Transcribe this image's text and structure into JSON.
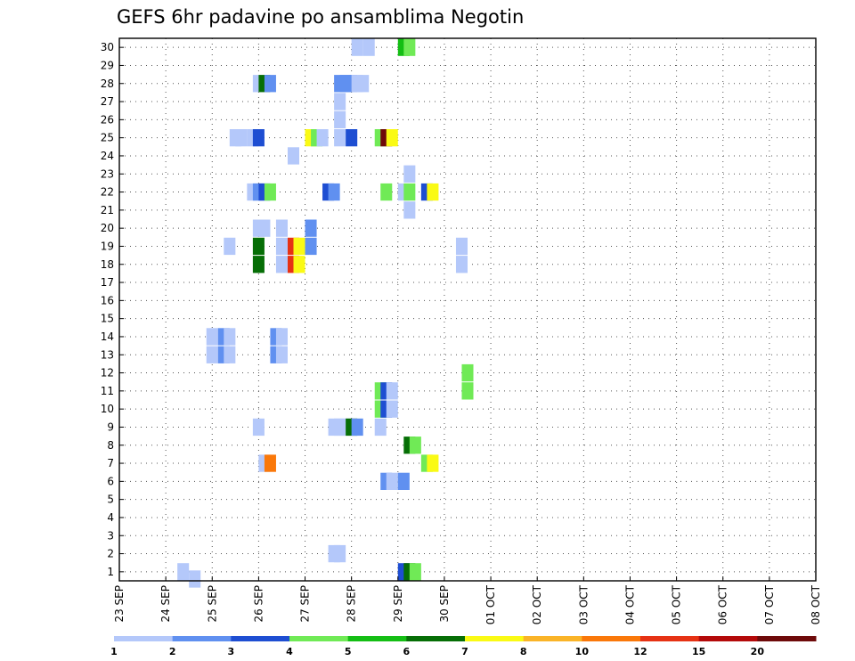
{
  "chart_data": {
    "type": "heatmap",
    "title": "GEFS 6hr padavine po ansamblima Negotin",
    "y_members": [
      "1",
      "2",
      "3",
      "4",
      "5",
      "6",
      "7",
      "8",
      "9",
      "10",
      "11",
      "12",
      "13",
      "14",
      "15",
      "16",
      "17",
      "18",
      "19",
      "20",
      "21",
      "22",
      "23",
      "24",
      "25",
      "26",
      "27",
      "28",
      "29",
      "30"
    ],
    "x_dates": [
      "23 SEP",
      "24 SEP",
      "25 SEP",
      "26 SEP",
      "27 SEP",
      "28 SEP",
      "29 SEP",
      "30 SEP",
      "01 OCT",
      "02 OCT",
      "03 OCT",
      "04 OCT",
      "05 OCT",
      "06 OCT",
      "07 OCT",
      "08 OCT"
    ],
    "x_step_hours": 6,
    "legend": {
      "colors": [
        "#b4c8fa",
        "#6090f0",
        "#1e4ed2",
        "#70ea56",
        "#14be14",
        "#066e06",
        "#fafa14",
        "#fab428",
        "#fa780a",
        "#e63214",
        "#b40a0a",
        "#6e0a0a"
      ],
      "labels": [
        "1",
        "2",
        "3",
        "4",
        "5",
        "6",
        "7",
        "8",
        "10",
        "12",
        "15",
        "20"
      ]
    },
    "cells": [
      {
        "m": 30,
        "t": 20.5,
        "c": 0
      },
      {
        "m": 30,
        "t": 21.5,
        "c": 0
      },
      {
        "m": 30,
        "t": 24.5,
        "c": 4
      },
      {
        "m": 30,
        "t": 25,
        "c": 3
      },
      {
        "m": 28,
        "t": 12,
        "c": 0
      },
      {
        "m": 28,
        "t": 12.5,
        "c": 5
      },
      {
        "m": 28,
        "t": 13,
        "c": 1
      },
      {
        "m": 28,
        "t": 19,
        "c": 1
      },
      {
        "m": 28,
        "t": 19.5,
        "c": 1
      },
      {
        "m": 28,
        "t": 20,
        "c": 1
      },
      {
        "m": 28,
        "t": 20.5,
        "c": 0
      },
      {
        "m": 28,
        "t": 21,
        "c": 0
      },
      {
        "m": 27,
        "t": 19,
        "c": 0
      },
      {
        "m": 26,
        "t": 19,
        "c": 0
      },
      {
        "m": 25,
        "t": 10,
        "c": 0
      },
      {
        "m": 25,
        "t": 10.5,
        "c": 0
      },
      {
        "m": 25,
        "t": 11.5,
        "c": 0
      },
      {
        "m": 25,
        "t": 12,
        "c": 2
      },
      {
        "m": 25,
        "t": 16.5,
        "c": 6
      },
      {
        "m": 25,
        "t": 17,
        "c": 3
      },
      {
        "m": 25,
        "t": 17.5,
        "c": 0
      },
      {
        "m": 25,
        "t": 19,
        "c": 0
      },
      {
        "m": 25,
        "t": 20,
        "c": 2
      },
      {
        "m": 25,
        "t": 22.5,
        "c": 3
      },
      {
        "m": 25,
        "t": 23,
        "c": 11
      },
      {
        "m": 25,
        "t": 23.5,
        "c": 6
      },
      {
        "m": 24,
        "t": 15,
        "c": 0
      },
      {
        "m": 23,
        "t": 25,
        "c": 0
      },
      {
        "m": 22,
        "t": 11.5,
        "c": 0
      },
      {
        "m": 22,
        "t": 12,
        "c": 1
      },
      {
        "m": 22,
        "t": 12.5,
        "c": 2
      },
      {
        "m": 22,
        "t": 13,
        "c": 3
      },
      {
        "m": 22,
        "t": 18,
        "c": 2
      },
      {
        "m": 22,
        "t": 18.5,
        "c": 1
      },
      {
        "m": 22,
        "t": 23,
        "c": 3
      },
      {
        "m": 22,
        "t": 24.5,
        "c": 0
      },
      {
        "m": 22,
        "t": 25,
        "c": 3
      },
      {
        "m": 22,
        "t": 26.5,
        "c": 2
      },
      {
        "m": 22,
        "t": 27,
        "c": 6
      },
      {
        "m": 21,
        "t": 25,
        "c": 0
      },
      {
        "m": 20,
        "t": 12,
        "c": 0
      },
      {
        "m": 20,
        "t": 12.5,
        "c": 0
      },
      {
        "m": 20,
        "t": 14,
        "c": 0
      },
      {
        "m": 20,
        "t": 16.5,
        "c": 1
      },
      {
        "m": 19,
        "t": 9.5,
        "c": 0
      },
      {
        "m": 19,
        "t": 12,
        "c": 5
      },
      {
        "m": 19,
        "t": 14,
        "c": 0
      },
      {
        "m": 19,
        "t": 15,
        "c": 9
      },
      {
        "m": 19,
        "t": 15.5,
        "c": 6
      },
      {
        "m": 19,
        "t": 16.5,
        "c": 1
      },
      {
        "m": 19,
        "t": 29.5,
        "c": 0
      },
      {
        "m": 18,
        "t": 12,
        "c": 5
      },
      {
        "m": 18,
        "t": 14,
        "c": 0
      },
      {
        "m": 18,
        "t": 15,
        "c": 9
      },
      {
        "m": 18,
        "t": 15.5,
        "c": 6
      },
      {
        "m": 18,
        "t": 29.5,
        "c": 0
      },
      {
        "m": 14,
        "t": 8,
        "c": 0
      },
      {
        "m": 14,
        "t": 9,
        "c": 1
      },
      {
        "m": 14,
        "t": 9.5,
        "c": 0
      },
      {
        "m": 14,
        "t": 13.5,
        "c": 1
      },
      {
        "m": 14,
        "t": 14,
        "c": 0
      },
      {
        "m": 13,
        "t": 8,
        "c": 0
      },
      {
        "m": 13,
        "t": 9,
        "c": 1
      },
      {
        "m": 13,
        "t": 9.5,
        "c": 0
      },
      {
        "m": 13,
        "t": 13.5,
        "c": 1
      },
      {
        "m": 13,
        "t": 14,
        "c": 0
      },
      {
        "m": 12,
        "t": 30,
        "c": 3
      },
      {
        "m": 11,
        "t": 22.5,
        "c": 3
      },
      {
        "m": 11,
        "t": 23,
        "c": 2
      },
      {
        "m": 11,
        "t": 23.5,
        "c": 0
      },
      {
        "m": 11,
        "t": 30,
        "c": 3
      },
      {
        "m": 10,
        "t": 22.5,
        "c": 3
      },
      {
        "m": 10,
        "t": 23,
        "c": 2
      },
      {
        "m": 10,
        "t": 23.5,
        "c": 0
      },
      {
        "m": 9,
        "t": 12,
        "c": 0
      },
      {
        "m": 9,
        "t": 18.5,
        "c": 0
      },
      {
        "m": 9,
        "t": 19,
        "c": 0
      },
      {
        "m": 9,
        "t": 19.5,
        "c": 0
      },
      {
        "m": 9,
        "t": 20,
        "c": 5
      },
      {
        "m": 9,
        "t": 20.5,
        "c": 1
      },
      {
        "m": 9,
        "t": 22.5,
        "c": 0
      },
      {
        "m": 8,
        "t": 25,
        "c": 5
      },
      {
        "m": 8,
        "t": 25.5,
        "c": 3
      },
      {
        "m": 7,
        "t": 12.5,
        "c": 0
      },
      {
        "m": 7,
        "t": 13,
        "c": 8
      },
      {
        "m": 7,
        "t": 26.5,
        "c": 3
      },
      {
        "m": 7,
        "t": 27,
        "c": 6
      },
      {
        "m": 6,
        "t": 23,
        "c": 1
      },
      {
        "m": 6,
        "t": 23.5,
        "c": 0
      },
      {
        "m": 6,
        "t": 24.5,
        "c": 1
      },
      {
        "m": 2,
        "t": 18.5,
        "c": 0
      },
      {
        "m": 2,
        "t": 19,
        "c": 0
      },
      {
        "m": 1,
        "t": 5.5,
        "c": 0
      },
      {
        "m": 1,
        "t": 24.5,
        "c": 2
      },
      {
        "m": 1,
        "t": 25,
        "c": 5
      },
      {
        "m": 1,
        "t": 25.5,
        "c": 3
      },
      {
        "m": 0.6,
        "t": 6.5,
        "c": 0
      }
    ]
  }
}
